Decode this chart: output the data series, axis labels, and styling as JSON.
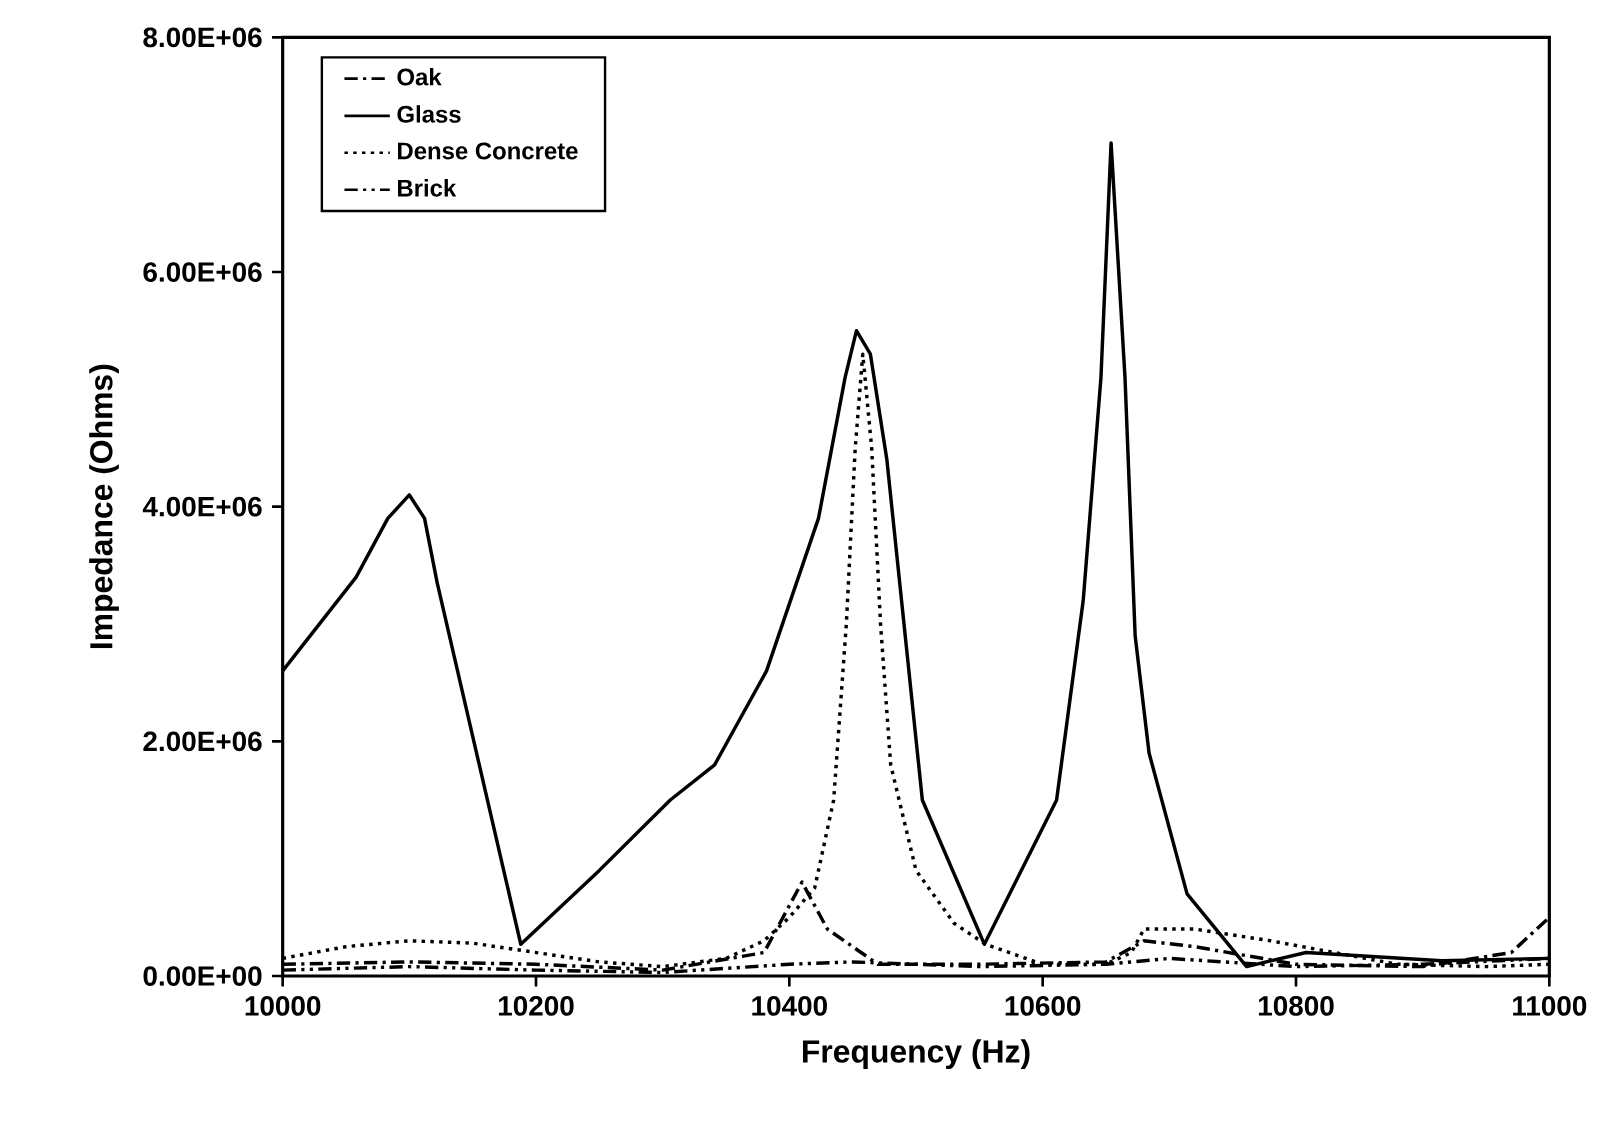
{
  "chart_data": {
    "type": "line",
    "xlabel": "Frequency (Hz)",
    "ylabel": "Impedance (Ohms)",
    "xlim": [
      10000,
      11000
    ],
    "xticks": [
      10000,
      10200,
      10400,
      10600,
      10800,
      11000
    ],
    "ylim": [
      0,
      8000000
    ],
    "yticks": [
      {
        "value": 0,
        "label": "0.00E+00"
      },
      {
        "value": 2000000,
        "label": "2.00E+06"
      },
      {
        "value": 4000000,
        "label": "4.00E+06"
      },
      {
        "value": 6000000,
        "label": "6.00E+06"
      },
      {
        "value": 8000000,
        "label": "8.00E+06"
      }
    ],
    "legend": "top left",
    "grid": false,
    "marker": "none",
    "series": [
      {
        "name": "Oak",
        "color": "#000000",
        "line_style": "dashdot",
        "x": [
          10000,
          10100,
          10200,
          10300,
          10380,
          10410,
          10430,
          10470,
          10550,
          10650,
          10680,
          10720,
          10800,
          10900,
          10970,
          11000
        ],
        "values": [
          100000,
          120000,
          100000,
          50000,
          200000,
          800000,
          400000,
          100000,
          100000,
          120000,
          300000,
          250000,
          100000,
          80000,
          200000,
          500000
        ]
      },
      {
        "name": "Glass",
        "color": "#000000",
        "line_style": "solid",
        "x": [
          10000,
          10058,
          10083,
          10100,
          10112,
          10122,
          10188,
          10250,
          10306,
          10341,
          10382,
          10423,
          10444,
          10453,
          10464,
          10477,
          10505,
          10554,
          10611,
          10632,
          10646,
          10654,
          10665,
          10673,
          10684,
          10714,
          10761,
          10808,
          10915,
          11000
        ],
        "values": [
          2600000,
          3400000,
          3900000,
          4100000,
          3900000,
          3350000,
          270000,
          900000,
          1500000,
          1800000,
          2600000,
          3900000,
          5100000,
          5500000,
          5300000,
          4400000,
          1500000,
          270000,
          1500000,
          3200000,
          5100000,
          7100000,
          5100000,
          2900000,
          1900000,
          700000,
          80000,
          200000,
          130000,
          150000
        ]
      },
      {
        "name": "Dense Concrete",
        "color": "#000000",
        "line_style": "dotted",
        "x": [
          10000,
          10050,
          10100,
          10150,
          10200,
          10250,
          10300,
          10350,
          10380,
          10400,
          10420,
          10435,
          10445,
          10452,
          10458,
          10465,
          10472,
          10480,
          10500,
          10530,
          10555,
          10600,
          10650,
          10670,
          10680,
          10720,
          10780,
          10830,
          10880,
          10950,
          11000
        ],
        "values": [
          150000,
          250000,
          300000,
          280000,
          200000,
          120000,
          80000,
          150000,
          300000,
          500000,
          750000,
          1500000,
          3000000,
          4500000,
          5300000,
          4500000,
          3000000,
          1800000,
          900000,
          450000,
          270000,
          100000,
          100000,
          200000,
          400000,
          400000,
          300000,
          200000,
          100000,
          80000,
          100000
        ]
      },
      {
        "name": "Brick",
        "color": "#000000",
        "line_style": "dashdotdot",
        "x": [
          10000,
          10100,
          10200,
          10300,
          10400,
          10450,
          10550,
          10650,
          10700,
          10800,
          10900,
          11000
        ],
        "values": [
          50000,
          80000,
          50000,
          30000,
          100000,
          120000,
          80000,
          100000,
          150000,
          80000,
          100000,
          150000
        ]
      }
    ]
  }
}
